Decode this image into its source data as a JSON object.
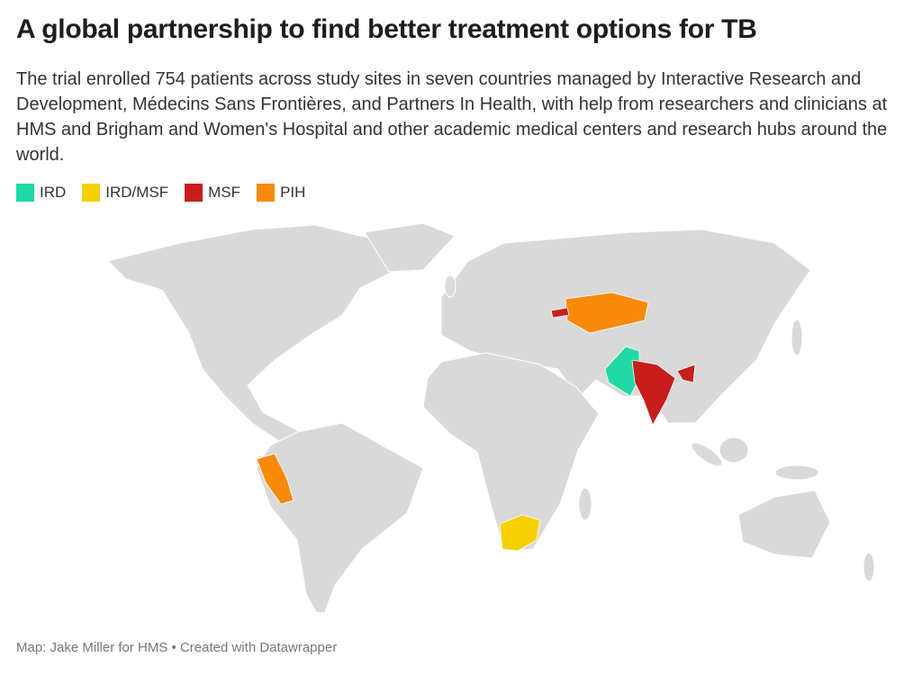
{
  "header": {
    "title": "A global partnership to find better treatment options for TB",
    "description": "The trial enrolled 754 patients across study sites in seven countries managed by Interactive Research and Development, Médecins Sans Frontières, and Partners In Health, with help from researchers and clinicians at HMS and Brigham and Women's Hospital and other academic medical centers and research hubs around the world."
  },
  "legend": [
    {
      "name": "IRD",
      "color": "#1fd8a4"
    },
    {
      "name": "IRD/MSF",
      "color": "#f5d000"
    },
    {
      "name": "MSF",
      "color": "#c71e1d"
    },
    {
      "name": "PIH",
      "color": "#f98a0a"
    }
  ],
  "footer": "Map: Jake Miller for HMS • Created with Datawrapper"
}
